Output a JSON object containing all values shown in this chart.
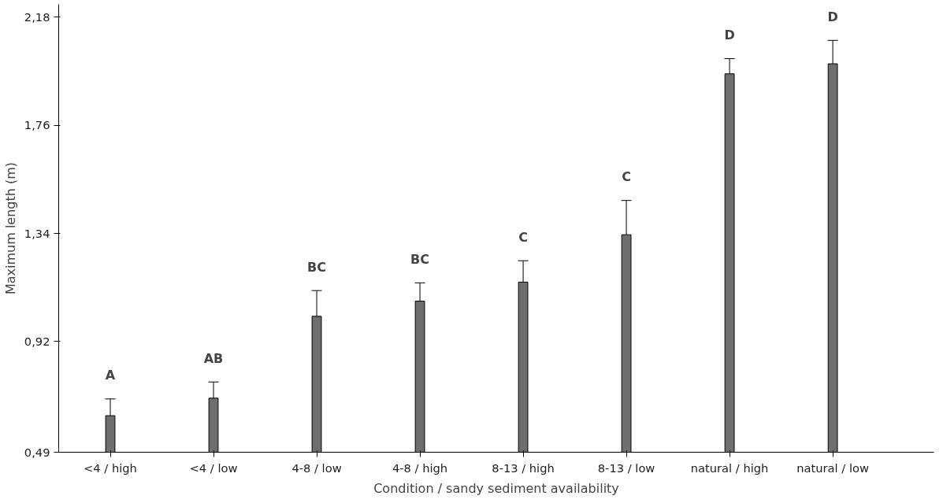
{
  "chart_data": {
    "type": "bar",
    "xlabel": "Condition / sandy sediment availability",
    "ylabel": "Maximum length (m)",
    "categories": [
      "<4 / high",
      "<4 / low",
      "4-8 / low",
      "4-8 / high",
      "8-13 / high",
      "8-13 / low",
      "natural / high",
      "natural / low"
    ],
    "values": [
      0.632,
      0.7,
      1.018,
      1.077,
      1.151,
      1.335,
      1.96,
      1.999
    ],
    "errors": [
      [
        0.632,
        0.697
      ],
      [
        0.7,
        0.763
      ],
      [
        1.018,
        1.118
      ],
      [
        1.077,
        1.148
      ],
      [
        1.151,
        1.234
      ],
      [
        1.335,
        1.468
      ],
      [
        1.96,
        2.019
      ],
      [
        1.999,
        2.09
      ]
    ],
    "color": "#6e6e6e",
    "ylim": [
      0.49,
      2.23
    ],
    "yticks": [
      {
        "value": 0.49,
        "label": "0,49"
      },
      {
        "value": 0.92,
        "label": "0,92"
      },
      {
        "value": 1.34,
        "label": "1,34"
      },
      {
        "value": 1.76,
        "label": "1,76"
      },
      {
        "value": 2.18,
        "label": "2,18"
      }
    ],
    "grid": false,
    "annotations": [
      "A",
      "AB",
      "BC",
      "BC",
      "C",
      "C",
      "D",
      "D"
    ]
  }
}
